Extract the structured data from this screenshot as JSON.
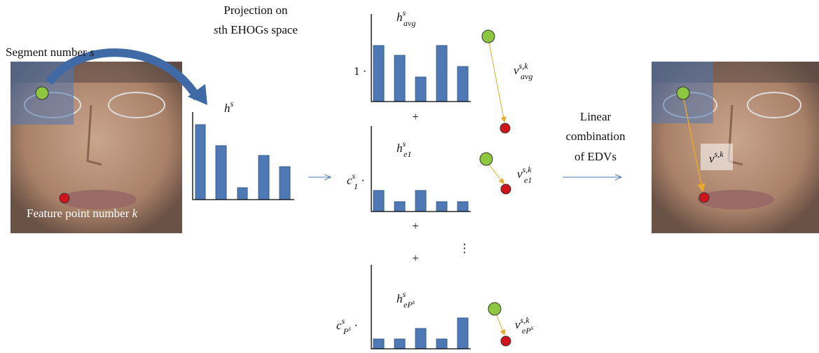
{
  "segment_label": {
    "text": "Segment number ",
    "var": "s"
  },
  "feature_label": {
    "text": "Feature point number ",
    "var": "k"
  },
  "projection_label": {
    "line1": "Projection on",
    "line2_var": "s",
    "line2_text": "th EHOGs space"
  },
  "input_histogram": {
    "base": "h",
    "sup": "s"
  },
  "components": [
    {
      "hist": {
        "base": "h",
        "sup": "s",
        "sub": "avg"
      },
      "coef": {
        "text": "1 ·"
      },
      "vector": {
        "base": "v",
        "sup": "s,k",
        "sub": "avg"
      }
    },
    {
      "hist": {
        "base": "h",
        "sup": "s",
        "sub": "e1"
      },
      "coef": {
        "base": "c",
        "sup": "s",
        "sub": "1",
        "dot": " ·"
      },
      "vector": {
        "base": "v",
        "sup": "s,k",
        "sub": "e1"
      }
    },
    {
      "hist": {
        "base": "h",
        "sup": "s",
        "sub": "eP",
        "subsup": "s"
      },
      "coef": {
        "base": "c",
        "sup": "s",
        "sub": "P",
        "subsup": "s",
        "dot": " ·"
      },
      "vector": {
        "base": "v",
        "sup": "s,k",
        "sub": "eP",
        "subsup": "s"
      }
    }
  ],
  "plus": "+",
  "ellipsis": "⋮",
  "combination_label": [
    "Linear",
    "combination",
    "of EDVs"
  ],
  "result_vector": {
    "base": "v",
    "sup": "s,k"
  }
}
